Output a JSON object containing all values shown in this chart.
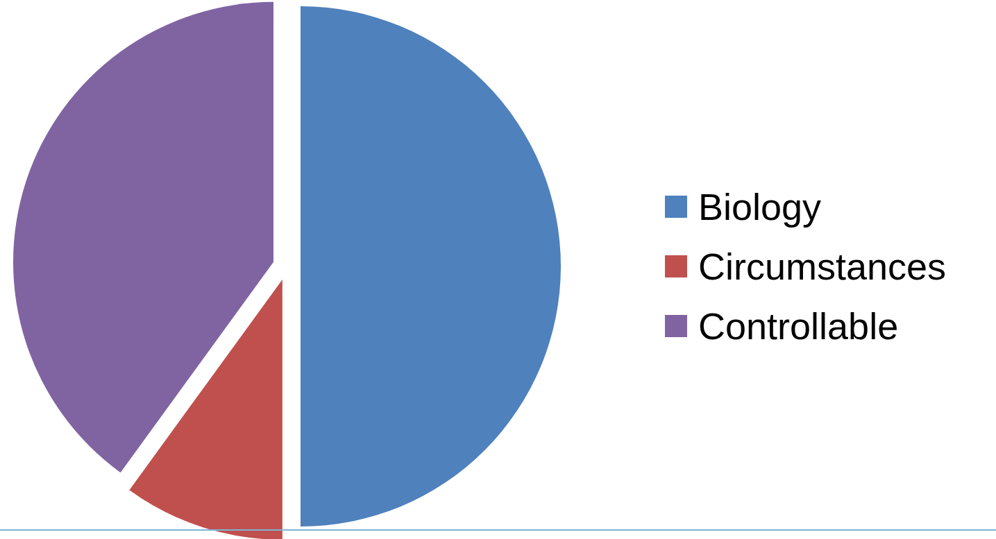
{
  "chart_data": {
    "type": "pie",
    "categories": [
      "Biology",
      "Circumstances",
      "Controllable"
    ],
    "values": [
      50,
      10,
      40
    ],
    "colors": [
      "#4f81bd",
      "#c0504d",
      "#8064a2"
    ],
    "legend": "right"
  }
}
